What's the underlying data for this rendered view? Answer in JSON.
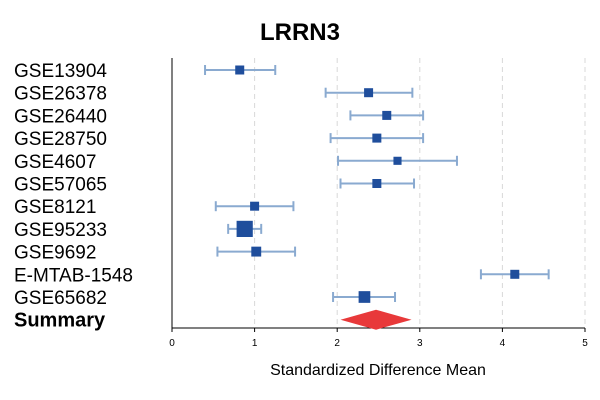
{
  "chart_data": {
    "type": "forest",
    "title": "LRRN3",
    "xlabel": "Standardized Difference Mean",
    "xlim": [
      0,
      5
    ],
    "x_ticks": [
      "0",
      "1",
      "2",
      "3",
      "4",
      "5"
    ],
    "vertical_grid": true,
    "colors": {
      "study": "#1f4e9c",
      "ci": "#8aaad0",
      "summary": "#e8393a",
      "grid": "#d8d8d8"
    },
    "studies": [
      {
        "label": "GSE13904",
        "mean": 0.82,
        "lower": 0.4,
        "upper": 1.25,
        "weight": 1.0
      },
      {
        "label": "GSE26378",
        "mean": 2.38,
        "lower": 1.86,
        "upper": 2.91,
        "weight": 1.0
      },
      {
        "label": "GSE26440",
        "mean": 2.6,
        "lower": 2.16,
        "upper": 3.04,
        "weight": 1.0
      },
      {
        "label": "GSE28750",
        "mean": 2.48,
        "lower": 1.92,
        "upper": 3.04,
        "weight": 1.0
      },
      {
        "label": "GSE4607",
        "mean": 2.73,
        "lower": 2.01,
        "upper": 3.45,
        "weight": 0.9
      },
      {
        "label": "GSE57065",
        "mean": 2.48,
        "lower": 2.04,
        "upper": 2.93,
        "weight": 1.0
      },
      {
        "label": "GSE8121",
        "mean": 1.0,
        "lower": 0.53,
        "upper": 1.47,
        "weight": 1.0
      },
      {
        "label": "GSE95233",
        "mean": 0.88,
        "lower": 0.68,
        "upper": 1.08,
        "weight": 1.8
      },
      {
        "label": "GSE9692",
        "mean": 1.02,
        "lower": 0.55,
        "upper": 1.49,
        "weight": 1.1
      },
      {
        "label": "E-MTAB-1548",
        "mean": 4.15,
        "lower": 3.74,
        "upper": 4.56,
        "weight": 1.0
      },
      {
        "label": "GSE65682",
        "mean": 2.33,
        "lower": 1.95,
        "upper": 2.7,
        "weight": 1.3
      }
    ],
    "summary": {
      "label": "Summary",
      "mean": 2.47,
      "lower": 2.04,
      "upper": 2.9
    }
  }
}
